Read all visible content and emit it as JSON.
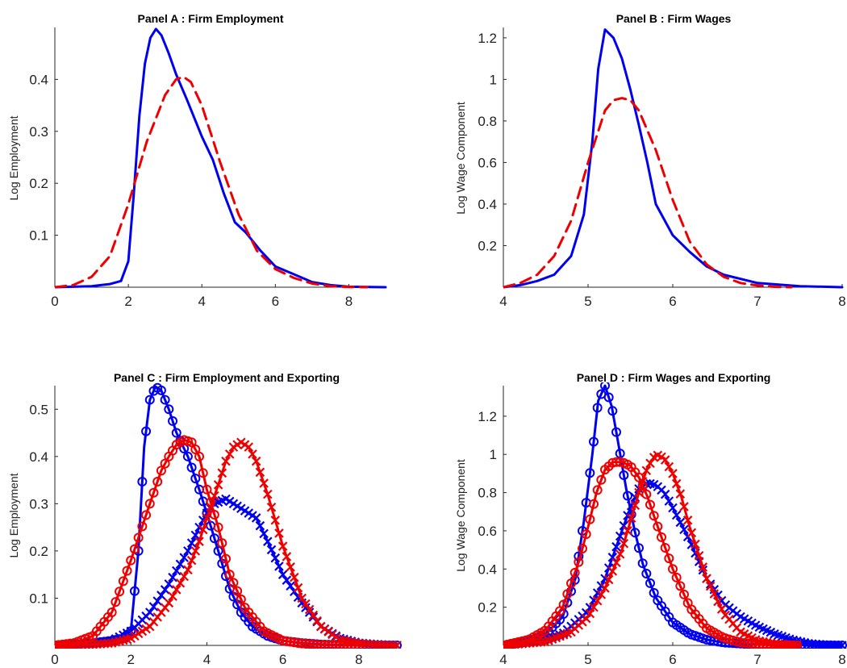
{
  "chart_data": [
    {
      "type": "line",
      "title": "Panel A : Firm Employment",
      "xlabel": "",
      "ylabel": "Log Employment",
      "xlim": [
        0,
        9
      ],
      "ylim": [
        0,
        0.5
      ],
      "xticks": [
        0,
        2,
        4,
        6,
        8
      ],
      "xticklabels": [
        "0",
        "2",
        "4",
        "6",
        "8"
      ],
      "yticks": [
        0.1,
        0.2,
        0.3,
        0.4
      ],
      "yticklabels": [
        "0.1",
        "0.2",
        "0.3",
        "0.4"
      ],
      "series": [
        {
          "color": "#0000ee",
          "style": "solid",
          "marker": "",
          "x": [
            0,
            1.0,
            1.5,
            1.8,
            2.0,
            2.15,
            2.3,
            2.45,
            2.6,
            2.75,
            2.9,
            3.1,
            3.3,
            3.6,
            4.0,
            4.3,
            4.6,
            4.9,
            5.2,
            5.6,
            6.0,
            6.5,
            7.0,
            7.5,
            8.0,
            9.0
          ],
          "y": [
            0,
            0.002,
            0.006,
            0.012,
            0.05,
            0.18,
            0.33,
            0.43,
            0.48,
            0.497,
            0.485,
            0.45,
            0.41,
            0.36,
            0.29,
            0.245,
            0.18,
            0.125,
            0.105,
            0.07,
            0.04,
            0.025,
            0.01,
            0.004,
            0.001,
            0
          ]
        },
        {
          "color": "#ee0000",
          "style": "dashed",
          "marker": "",
          "x": [
            0,
            0.5,
            1.0,
            1.5,
            2.0,
            2.5,
            3.0,
            3.3,
            3.5,
            3.7,
            4.0,
            4.5,
            5.0,
            5.5,
            6.0,
            6.5,
            7.0,
            7.5,
            8.0,
            8.5
          ],
          "y": [
            0,
            0.004,
            0.02,
            0.06,
            0.16,
            0.28,
            0.37,
            0.4,
            0.405,
            0.395,
            0.35,
            0.24,
            0.14,
            0.07,
            0.035,
            0.018,
            0.007,
            0.002,
            0.0005,
            0
          ]
        }
      ]
    },
    {
      "type": "line",
      "title": "Panel B : Firm Wages",
      "xlabel": "",
      "ylabel": "Log Wage Component",
      "xlim": [
        4,
        8
      ],
      "ylim": [
        0,
        1.25
      ],
      "xticks": [
        4,
        5,
        6,
        7,
        8
      ],
      "xticklabels": [
        "4",
        "5",
        "6",
        "7",
        "8"
      ],
      "yticks": [
        0.2,
        0.4,
        0.6,
        0.8,
        1.0,
        1.2
      ],
      "yticklabels": [
        "0.2",
        "0.4",
        "0.6",
        "0.8",
        "1",
        "1.2"
      ],
      "series": [
        {
          "color": "#0000ee",
          "style": "solid",
          "marker": "",
          "x": [
            4.0,
            4.2,
            4.4,
            4.6,
            4.8,
            4.95,
            5.05,
            5.12,
            5.2,
            5.3,
            5.4,
            5.5,
            5.6,
            5.7,
            5.8,
            6.0,
            6.2,
            6.4,
            6.6,
            7.0,
            7.5,
            8.0
          ],
          "y": [
            0,
            0.01,
            0.03,
            0.06,
            0.15,
            0.35,
            0.7,
            1.05,
            1.24,
            1.2,
            1.1,
            0.95,
            0.78,
            0.6,
            0.4,
            0.25,
            0.17,
            0.1,
            0.06,
            0.02,
            0.005,
            0
          ]
        },
        {
          "color": "#ee0000",
          "style": "dashed",
          "marker": "",
          "x": [
            4.0,
            4.2,
            4.4,
            4.6,
            4.8,
            5.0,
            5.2,
            5.3,
            5.4,
            5.5,
            5.6,
            5.8,
            6.0,
            6.2,
            6.4,
            6.6,
            6.8,
            7.0,
            7.2,
            7.4
          ],
          "y": [
            0,
            0.02,
            0.06,
            0.15,
            0.32,
            0.6,
            0.85,
            0.9,
            0.91,
            0.9,
            0.85,
            0.66,
            0.42,
            0.22,
            0.11,
            0.05,
            0.02,
            0.008,
            0.002,
            0
          ]
        }
      ]
    },
    {
      "type": "line",
      "title": "Panel C : Firm Employment and Exporting",
      "xlabel": "",
      "ylabel": "Log Employment",
      "xlim": [
        0,
        9
      ],
      "ylim": [
        0,
        0.55
      ],
      "xticks": [
        0,
        2,
        4,
        6,
        8
      ],
      "xticklabels": [
        "0",
        "2",
        "4",
        "6",
        "8"
      ],
      "yticks": [
        0.1,
        0.2,
        0.3,
        0.4,
        0.5
      ],
      "yticklabels": [
        "0.1",
        "0.2",
        "0.3",
        "0.4",
        "0.5"
      ],
      "series": [
        {
          "color": "#0000ee",
          "style": "solid",
          "marker": "o",
          "x": [
            0,
            1.0,
            1.5,
            1.8,
            2.0,
            2.2,
            2.35,
            2.5,
            2.65,
            2.8,
            3.0,
            3.2,
            3.5,
            3.8,
            4.0,
            4.3,
            4.6,
            4.9,
            5.2,
            5.6,
            6.0,
            6.5,
            7.0,
            7.5,
            8.0,
            8.5,
            9.0
          ],
          "y": [
            0,
            0.005,
            0.01,
            0.015,
            0.03,
            0.2,
            0.42,
            0.52,
            0.548,
            0.54,
            0.5,
            0.45,
            0.4,
            0.33,
            0.28,
            0.2,
            0.12,
            0.07,
            0.04,
            0.02,
            0.01,
            0.005,
            0.002,
            0.001,
            0,
            0,
            0
          ]
        },
        {
          "color": "#0000ee",
          "style": "solid",
          "marker": "x",
          "x": [
            0,
            1.0,
            1.5,
            2.0,
            2.5,
            3.0,
            3.5,
            3.8,
            4.0,
            4.2,
            4.5,
            4.8,
            5.0,
            5.3,
            5.6,
            6.0,
            6.5,
            7.0,
            7.5,
            8.0,
            8.5,
            9.0
          ],
          "y": [
            0,
            0.003,
            0.01,
            0.03,
            0.07,
            0.13,
            0.2,
            0.25,
            0.28,
            0.3,
            0.31,
            0.295,
            0.285,
            0.27,
            0.22,
            0.15,
            0.09,
            0.04,
            0.015,
            0.005,
            0.002,
            0
          ]
        },
        {
          "color": "#ee0000",
          "style": "solid",
          "marker": "o",
          "x": [
            0,
            0.5,
            1.0,
            1.5,
            2.0,
            2.5,
            2.8,
            3.0,
            3.2,
            3.4,
            3.6,
            3.8,
            4.0,
            4.3,
            4.6,
            5.0,
            5.5,
            6.0,
            6.5,
            7.0,
            7.5,
            8.0
          ],
          "y": [
            0,
            0.005,
            0.02,
            0.07,
            0.18,
            0.3,
            0.37,
            0.4,
            0.425,
            0.435,
            0.43,
            0.4,
            0.33,
            0.25,
            0.15,
            0.08,
            0.03,
            0.01,
            0.004,
            0.001,
            0,
            0
          ]
        },
        {
          "color": "#ee0000",
          "style": "solid",
          "marker": "x",
          "x": [
            0,
            1.0,
            1.5,
            2.0,
            2.5,
            3.0,
            3.5,
            3.8,
            4.0,
            4.3,
            4.5,
            4.7,
            4.9,
            5.1,
            5.3,
            5.6,
            6.0,
            6.5,
            7.0,
            7.5,
            8.0,
            8.5,
            9.0
          ],
          "y": [
            0,
            0.002,
            0.005,
            0.015,
            0.04,
            0.09,
            0.16,
            0.22,
            0.27,
            0.34,
            0.39,
            0.42,
            0.43,
            0.42,
            0.39,
            0.32,
            0.21,
            0.1,
            0.04,
            0.012,
            0.004,
            0.001,
            0
          ]
        }
      ]
    },
    {
      "type": "line",
      "title": "Panel D : Firm Wages and Exporting",
      "xlabel": "",
      "ylabel": "Log Wage Component",
      "xlim": [
        4,
        8
      ],
      "ylim": [
        0,
        1.36
      ],
      "xticks": [
        4,
        5,
        6,
        7,
        8
      ],
      "xticklabels": [
        "4",
        "5",
        "6",
        "7",
        "8"
      ],
      "yticks": [
        0.2,
        0.4,
        0.6,
        0.8,
        1.0,
        1.2
      ],
      "yticklabels": [
        "0.2",
        "0.4",
        "0.6",
        "0.8",
        "1",
        "1.2"
      ],
      "series": [
        {
          "color": "#0000ee",
          "style": "solid",
          "marker": "o",
          "x": [
            4.0,
            4.3,
            4.5,
            4.7,
            4.85,
            4.95,
            5.05,
            5.12,
            5.2,
            5.28,
            5.36,
            5.45,
            5.55,
            5.65,
            5.8,
            6.0,
            6.2,
            6.4,
            6.6,
            7.0,
            7.5,
            8.0
          ],
          "y": [
            0,
            0.02,
            0.06,
            0.15,
            0.35,
            0.65,
            1.0,
            1.28,
            1.36,
            1.25,
            1.05,
            0.82,
            0.6,
            0.42,
            0.25,
            0.12,
            0.06,
            0.03,
            0.015,
            0.004,
            0.001,
            0
          ]
        },
        {
          "color": "#0000ee",
          "style": "solid",
          "marker": "x",
          "x": [
            4.0,
            4.4,
            4.7,
            5.0,
            5.2,
            5.4,
            5.5,
            5.6,
            5.7,
            5.8,
            5.9,
            6.0,
            6.2,
            6.4,
            6.6,
            6.8,
            7.0,
            7.2,
            7.4,
            7.6,
            7.8,
            8.0
          ],
          "y": [
            0,
            0.02,
            0.06,
            0.18,
            0.35,
            0.6,
            0.72,
            0.82,
            0.85,
            0.84,
            0.8,
            0.72,
            0.55,
            0.35,
            0.22,
            0.15,
            0.1,
            0.06,
            0.03,
            0.01,
            0.003,
            0
          ]
        },
        {
          "color": "#ee0000",
          "style": "solid",
          "marker": "o",
          "x": [
            4.0,
            4.3,
            4.5,
            4.7,
            4.9,
            5.0,
            5.1,
            5.2,
            5.3,
            5.4,
            5.5,
            5.6,
            5.7,
            5.8,
            6.0,
            6.2,
            6.4,
            6.6,
            6.8,
            7.0,
            7.5
          ],
          "y": [
            0,
            0.03,
            0.08,
            0.2,
            0.45,
            0.62,
            0.8,
            0.92,
            0.96,
            0.96,
            0.94,
            0.88,
            0.78,
            0.65,
            0.4,
            0.2,
            0.09,
            0.04,
            0.015,
            0.005,
            0
          ]
        },
        {
          "color": "#ee0000",
          "style": "solid",
          "marker": "x",
          "x": [
            4.0,
            4.5,
            4.8,
            5.0,
            5.2,
            5.4,
            5.5,
            5.6,
            5.7,
            5.8,
            5.9,
            6.0,
            6.1,
            6.2,
            6.4,
            6.6,
            6.8,
            7.0,
            7.2,
            7.5
          ],
          "y": [
            0,
            0.02,
            0.07,
            0.15,
            0.3,
            0.5,
            0.65,
            0.8,
            0.93,
            1.0,
            0.98,
            0.9,
            0.78,
            0.62,
            0.35,
            0.17,
            0.07,
            0.025,
            0.008,
            0
          ]
        }
      ]
    }
  ]
}
